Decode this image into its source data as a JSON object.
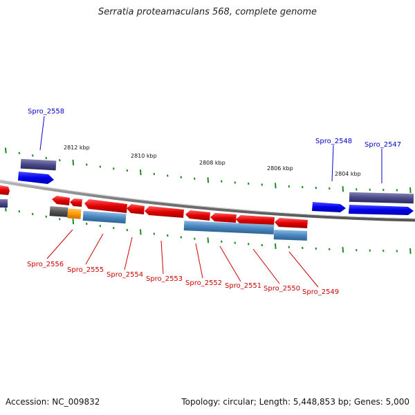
{
  "title": "Serratia proteamaculans 568, complete genome",
  "footer": {
    "accession": "Accession: NC_009832",
    "summary": "Topology: circular; Length: 5,448,853 bp; Genes: 5,000"
  },
  "scale_labels": [
    "2812 kbp",
    "2810 kbp",
    "2808 kbp",
    "2806 kbp",
    "2804 kbp"
  ],
  "gene_labels_top": [
    "Spro_2558",
    "Spro_2548",
    "Spro_2547"
  ],
  "gene_labels_bottom": [
    "Spro_2556",
    "Spro_2555",
    "Spro_2554",
    "Spro_2553",
    "Spro_2552",
    "Spro_2551",
    "Spro_2550",
    "Spro_2549"
  ],
  "colors": {
    "forward_gene": "#0000ee",
    "reverse_gene": "#e00000",
    "forward_label": "#0000cc",
    "reverse_label": "#cc0000",
    "cds_purple": "#4a4a8a",
    "cds_steel": "#4a86c0",
    "pseudo_gray": "#555555",
    "orange": "#ff9a00",
    "tick_green": "#1e8a1e",
    "backbone": "#777777"
  }
}
